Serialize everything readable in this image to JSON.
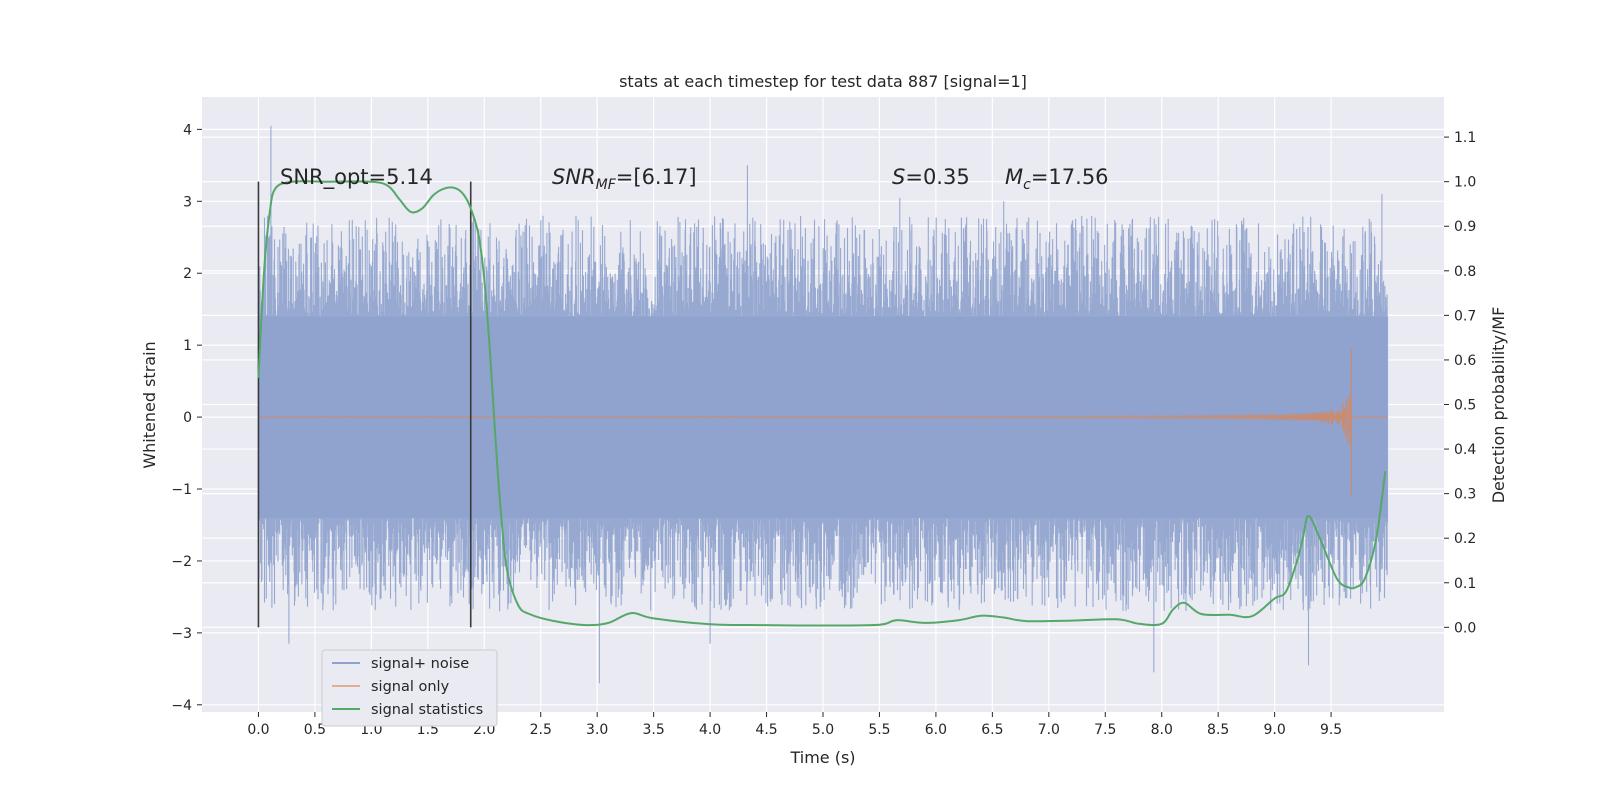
{
  "chart_data": {
    "type": "line",
    "title": "stats at each timestep for test data 887 [signal=1]",
    "xlabel": "Time (s)",
    "ylabel": "Whitened strain",
    "ylabel_right": "Detection probability/MF",
    "xlim": [
      -0.5,
      10.5
    ],
    "ylim": [
      -4.1,
      4.45
    ],
    "ylim_right": [
      -0.19,
      1.19
    ],
    "grid": true,
    "x_ticks": [
      0.0,
      0.5,
      1.0,
      1.5,
      2.0,
      2.5,
      3.0,
      3.5,
      4.0,
      4.5,
      5.0,
      5.5,
      6.0,
      6.5,
      7.0,
      7.5,
      8.0,
      8.5,
      9.0,
      9.5
    ],
    "x_tick_labels": [
      "0.0",
      "0.5",
      "1.0",
      "1.5",
      "2.0",
      "2.5",
      "3.0",
      "3.5",
      "4.0",
      "4.5",
      "5.0",
      "5.5",
      "6.0",
      "6.5",
      "7.0",
      "7.5",
      "8.0",
      "8.5",
      "9.0",
      "9.5"
    ],
    "y_ticks": [
      -4,
      -3,
      -2,
      -1,
      0,
      1,
      2,
      3,
      4
    ],
    "y_tick_labels": [
      "−4",
      "−3",
      "−2",
      "−1",
      "0",
      "1",
      "2",
      "3",
      "4"
    ],
    "y_right_ticks": [
      0.0,
      0.1,
      0.2,
      0.3,
      0.4,
      0.5,
      0.6,
      0.7,
      0.8,
      0.9,
      1.0,
      1.1
    ],
    "y_right_tick_labels": [
      "0.0",
      "0.1",
      "0.2",
      "0.3",
      "0.4",
      "0.5",
      "0.6",
      "0.7",
      "0.8",
      "0.9",
      "1.0",
      "1.1"
    ],
    "annotations": {
      "snr_opt": "SNR_opt=5.14",
      "snr_mf_base": "SNR",
      "snr_mf_sub": "MF",
      "snr_mf_value": "=[6.17]",
      "s_label": "S",
      "s_value": "=0.35",
      "mc_base": "M",
      "mc_sub": "c",
      "mc_value": "=17.56"
    },
    "vertical_markers_x": [
      0.0,
      1.88
    ],
    "legend": {
      "placement": "lower-left",
      "entries": [
        "signal+ noise",
        "signal only",
        "signal statistics"
      ]
    },
    "colors": {
      "background": "#eaeaf2",
      "grid": "#ffffff",
      "noise": "#8ea2cd",
      "signal": "#dd8452",
      "stats": "#55a868",
      "marker": "#3a3a3a"
    },
    "series": [
      {
        "name": "signal+ noise",
        "axis": "left",
        "band_range": [
          0.0,
          10.0
        ],
        "band_core": [
          -1.4,
          1.4
        ],
        "peak_points": [
          [
            0.11,
            4.05
          ],
          [
            0.27,
            -3.15
          ],
          [
            4.33,
            3.5
          ],
          [
            3.02,
            -3.7
          ],
          [
            4.0,
            -3.15
          ],
          [
            7.93,
            -3.55
          ],
          [
            9.3,
            -3.45
          ],
          [
            9.95,
            3.1
          ],
          [
            6.6,
            3.0
          ],
          [
            5.68,
            3.05
          ]
        ]
      },
      {
        "name": "signal only",
        "axis": "left",
        "x_range": [
          0.0,
          9.68
        ],
        "chirp_end_amplitude": 0.95
      },
      {
        "name": "signal statistics",
        "axis": "right",
        "x": [
          0.0,
          0.05,
          0.1,
          0.15,
          0.3,
          0.6,
          1.0,
          1.15,
          1.25,
          1.35,
          1.45,
          1.55,
          1.65,
          1.75,
          1.82,
          1.88,
          1.95,
          2.0,
          2.05,
          2.1,
          2.15,
          2.2,
          2.3,
          2.4,
          2.6,
          2.9,
          3.1,
          3.3,
          3.5,
          4.0,
          4.5,
          5.0,
          5.5,
          5.65,
          5.9,
          6.2,
          6.4,
          6.6,
          6.8,
          7.2,
          7.6,
          7.8,
          8.0,
          8.1,
          8.2,
          8.35,
          8.6,
          8.8,
          9.0,
          9.1,
          9.2,
          9.25,
          9.3,
          9.4,
          9.55,
          9.65,
          9.72,
          9.8,
          9.9,
          9.98
        ],
        "y": [
          0.56,
          0.8,
          0.93,
          0.985,
          1.0,
          1.0,
          1.0,
          0.99,
          0.96,
          0.932,
          0.94,
          0.97,
          0.985,
          0.985,
          0.97,
          0.94,
          0.88,
          0.78,
          0.62,
          0.42,
          0.25,
          0.13,
          0.05,
          0.03,
          0.015,
          0.005,
          0.01,
          0.032,
          0.02,
          0.007,
          0.005,
          0.004,
          0.006,
          0.016,
          0.01,
          0.016,
          0.026,
          0.022,
          0.014,
          0.015,
          0.018,
          0.008,
          0.008,
          0.04,
          0.055,
          0.03,
          0.028,
          0.025,
          0.065,
          0.08,
          0.15,
          0.2,
          0.25,
          0.2,
          0.11,
          0.09,
          0.09,
          0.11,
          0.2,
          0.35
        ]
      }
    ]
  }
}
